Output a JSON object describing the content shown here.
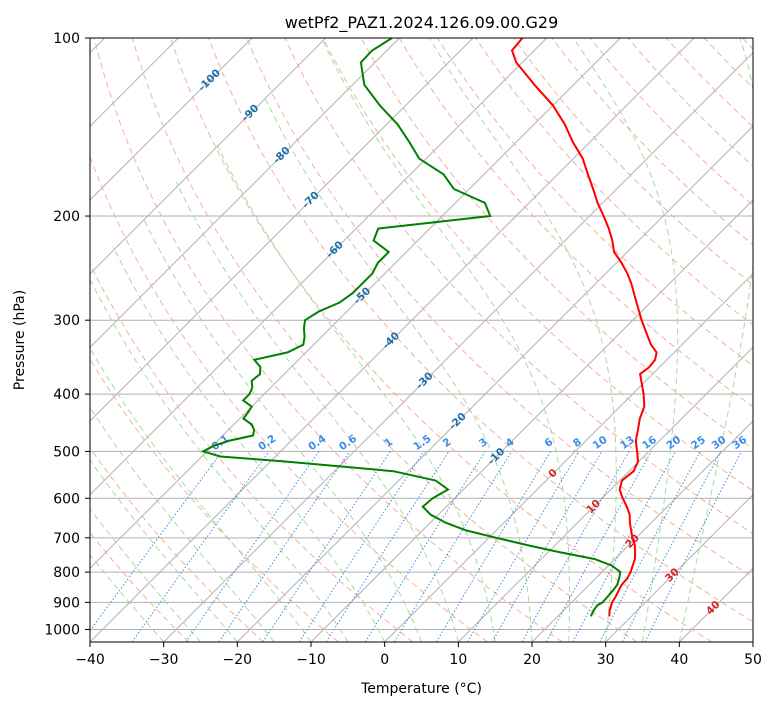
{
  "chart_data": {
    "type": "line",
    "title": "wetPf2_PAZ1.2024.126.09.00.G29",
    "xlabel": "Temperature (°C)",
    "ylabel": "Pressure (hPa)",
    "xlim": [
      -40,
      50
    ],
    "ylim": [
      1050,
      100
    ],
    "y_scale": "log",
    "grid": true,
    "x_ticks": [
      "−40",
      "−30",
      "−20",
      "−10",
      "0",
      "10",
      "20",
      "30",
      "40",
      "50"
    ],
    "y_ticks": [
      "100",
      "200",
      "300",
      "400",
      "500",
      "600",
      "700",
      "800",
      "900",
      "1000"
    ],
    "skew_line_labels": [
      "-100",
      "-90",
      "-80",
      "-70",
      "-60",
      "-50",
      "-40",
      "-30",
      "-20",
      "-10",
      "0",
      "10",
      "20",
      "30",
      "40"
    ],
    "mixing_ratio_labels": [
      "0.1",
      "0.2",
      "0.4",
      "0.6",
      "1",
      "1.5",
      "2",
      "3",
      "4",
      "6",
      "8",
      "10",
      "13",
      "16",
      "20",
      "25",
      "30",
      "36"
    ],
    "series": [
      {
        "name": "",
        "color": "#ff0000",
        "pressure": [
          950,
          930,
          900,
          880,
          860,
          840,
          820,
          800,
          780,
          760,
          740,
          720,
          700,
          680,
          660,
          640,
          620,
          600,
          580,
          560,
          540,
          520,
          500,
          480,
          460,
          440,
          420,
          400,
          380,
          370,
          360,
          350,
          340,
          330,
          320,
          300,
          280,
          260,
          250,
          240,
          230,
          220,
          210,
          200,
          190,
          180,
          170,
          160,
          150,
          140,
          130,
          120,
          110,
          105,
          100
        ],
        "values": [
          27.0,
          26.3,
          25.5,
          25.2,
          24.8,
          24.4,
          24.3,
          23.9,
          23.3,
          22.7,
          21.8,
          20.8,
          19.5,
          18.3,
          17.1,
          16.0,
          14.5,
          12.8,
          11.2,
          10.3,
          10.6,
          9.9,
          8.4,
          6.8,
          5.6,
          4.3,
          3.3,
          1.5,
          -0.6,
          -1.7,
          -1.4,
          -1.6,
          -2.4,
          -4.2,
          -5.7,
          -8.8,
          -11.9,
          -15.2,
          -17.1,
          -19.3,
          -21.8,
          -23.6,
          -25.7,
          -28.1,
          -30.7,
          -33.2,
          -35.9,
          -38.7,
          -42.3,
          -45.8,
          -50.0,
          -55.3,
          -60.8,
          -63.0,
          -63.3
        ]
      },
      {
        "name": "",
        "color": "#008000",
        "pressure": [
          950,
          930,
          910,
          900,
          880,
          860,
          840,
          820,
          800,
          780,
          760,
          740,
          720,
          700,
          680,
          660,
          640,
          620,
          600,
          580,
          560,
          540,
          520,
          510,
          500,
          490,
          480,
          470,
          460,
          450,
          440,
          430,
          420,
          410,
          400,
          390,
          380,
          370,
          360,
          350,
          340,
          330,
          320,
          310,
          300,
          290,
          280,
          270,
          260,
          250,
          240,
          230,
          220,
          210,
          200,
          190,
          180,
          170,
          160,
          150,
          140,
          130,
          120,
          110,
          105,
          100
        ],
        "values": [
          24.5,
          24.1,
          23.9,
          24.2,
          24.1,
          24.0,
          23.8,
          23.2,
          22.5,
          20.5,
          17.2,
          11.5,
          6.2,
          1.0,
          -4.1,
          -7.9,
          -11.0,
          -13.2,
          -13.0,
          -12.1,
          -15.0,
          -22.0,
          -38.0,
          -47.5,
          -50.5,
          -49.9,
          -48.5,
          -45.9,
          -46.5,
          -47.6,
          -49.5,
          -49.7,
          -50.0,
          -52.0,
          -52.0,
          -52.5,
          -53.5,
          -53.3,
          -54.2,
          -56.0,
          -52.5,
          -51.4,
          -52.3,
          -53.5,
          -54.5,
          -53.8,
          -52.2,
          -51.7,
          -51.7,
          -51.7,
          -52.4,
          -52.4,
          -56.0,
          -57.0,
          -43.5,
          -46.0,
          -52.1,
          -55.5,
          -60.9,
          -64.5,
          -68.5,
          -73.5,
          -78.4,
          -81.9,
          -82.0,
          -81.0
        ]
      }
    ]
  }
}
